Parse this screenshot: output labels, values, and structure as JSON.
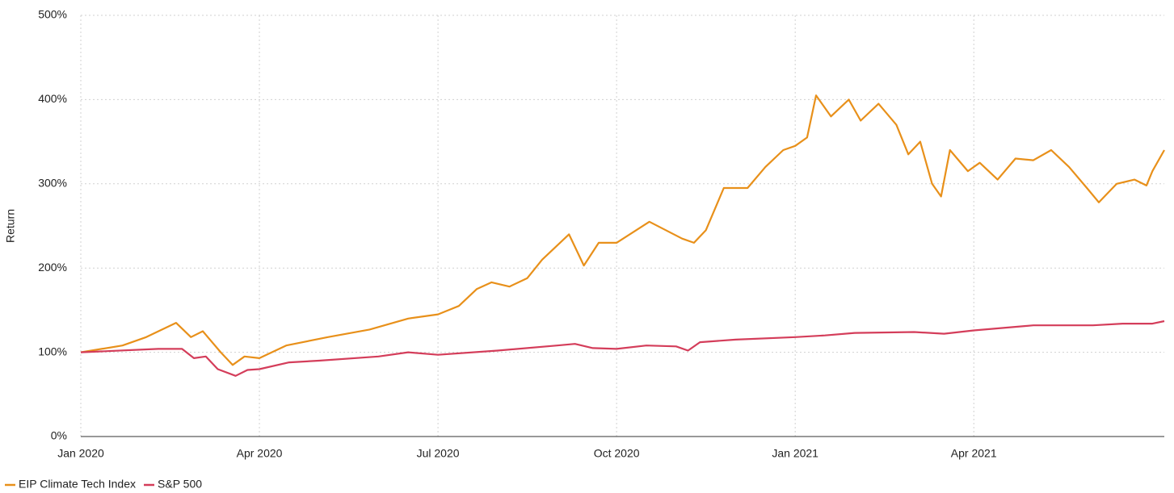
{
  "chart_data": {
    "type": "line",
    "y_label": "Return",
    "xlim": [
      0,
      18.2
    ],
    "xticks": [
      {
        "value": 0,
        "label": "Jan 2020"
      },
      {
        "value": 3,
        "label": "Apr 2020"
      },
      {
        "value": 6,
        "label": "Jul 2020"
      },
      {
        "value": 9,
        "label": "Oct 2020"
      },
      {
        "value": 12,
        "label": "Jan 2021"
      },
      {
        "value": 15,
        "label": "Apr 2021"
      }
    ],
    "ylim": [
      0,
      500
    ],
    "yticks": [
      {
        "value": 0,
        "label": "0%"
      },
      {
        "value": 100,
        "label": "100%"
      },
      {
        "value": 200,
        "label": "200%"
      },
      {
        "value": 300,
        "label": "300%"
      },
      {
        "value": 400,
        "label": "400%"
      },
      {
        "value": 500,
        "label": "500%"
      }
    ],
    "grid": true,
    "legend": "bottom-left",
    "series": [
      {
        "name": "EIP Climate Tech Index",
        "color": "#e8901a",
        "x": [
          0,
          0.7,
          1.1,
          1.6,
          1.85,
          2.05,
          2.35,
          2.55,
          2.75,
          3,
          3.45,
          4.15,
          4.85,
          5.5,
          6,
          6.35,
          6.65,
          6.9,
          7.2,
          7.5,
          7.75,
          8.2,
          8.45,
          8.7,
          9,
          9.55,
          10.1,
          10.3,
          10.5,
          10.8,
          11.2,
          11.5,
          11.8,
          12,
          12.2,
          12.35,
          12.6,
          12.9,
          13.1,
          13.4,
          13.7,
          13.9,
          14.1,
          14.3,
          14.45,
          14.6,
          14.9,
          15.1,
          15.4,
          15.7,
          16,
          16.3,
          16.6,
          16.9,
          17.1,
          17.4,
          17.7,
          17.9,
          18,
          18.2
        ],
        "values": [
          100,
          108,
          118,
          135,
          118,
          125,
          100,
          85,
          95,
          93,
          108,
          118,
          127,
          140,
          145,
          155,
          175,
          183,
          178,
          188,
          210,
          240,
          203,
          230,
          230,
          255,
          235,
          230,
          245,
          295,
          295,
          320,
          340,
          345,
          355,
          405,
          380,
          400,
          375,
          395,
          370,
          335,
          350,
          300,
          285,
          340,
          315,
          325,
          305,
          330,
          328,
          340,
          320,
          295,
          278,
          300,
          305,
          298,
          315,
          340
        ]
      },
      {
        "name": "S&P 500",
        "color": "#d43d5a",
        "x": [
          0,
          1.3,
          1.7,
          1.9,
          2.1,
          2.3,
          2.6,
          2.8,
          3,
          3.5,
          4,
          5,
          5.5,
          6,
          7,
          8,
          8.3,
          8.6,
          9,
          9.5,
          10,
          10.2,
          10.4,
          11,
          12,
          12.5,
          13,
          14,
          14.5,
          15,
          16,
          17,
          17.5,
          18,
          18.2
        ],
        "values": [
          100,
          104,
          104,
          93,
          95,
          80,
          72,
          79,
          80,
          88,
          90,
          95,
          100,
          97,
          102,
          108,
          110,
          105,
          104,
          108,
          107,
          102,
          112,
          115,
          118,
          120,
          123,
          124,
          122,
          126,
          132,
          132,
          134,
          134,
          137
        ]
      }
    ]
  }
}
